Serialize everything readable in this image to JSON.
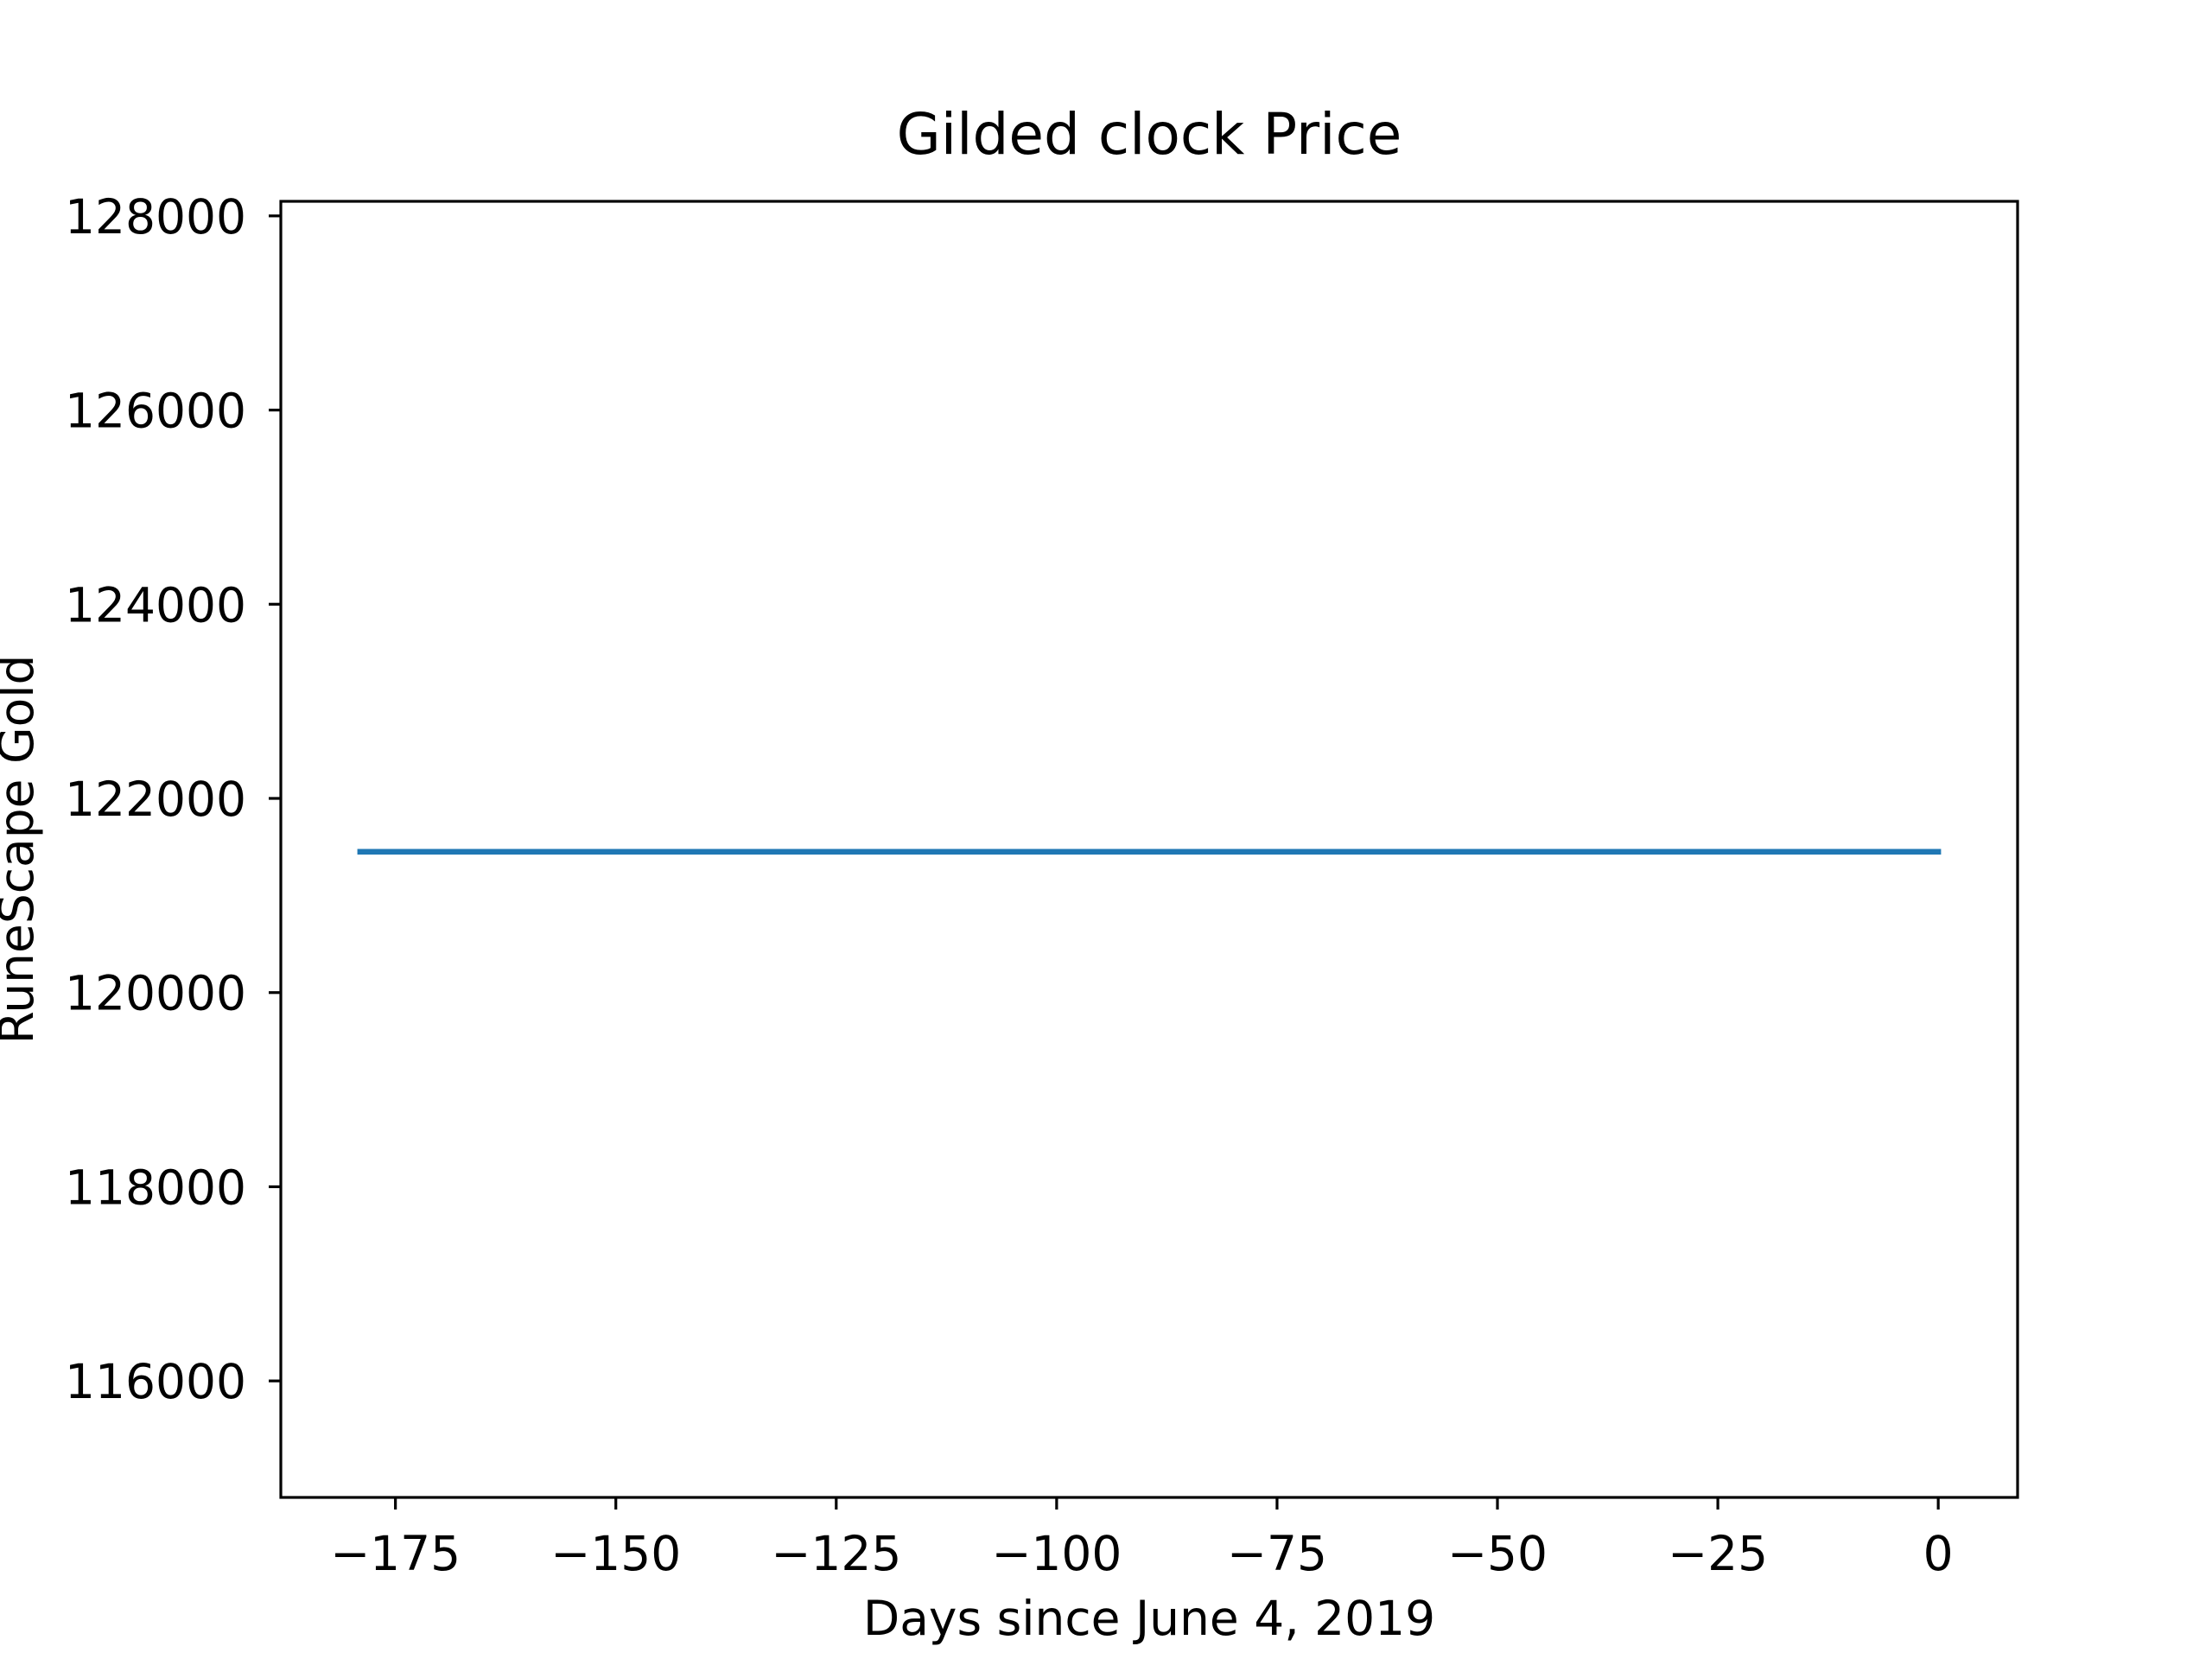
{
  "chart_data": {
    "type": "line",
    "title": "Gilded clock Price",
    "xlabel": "Days since June 4, 2019",
    "ylabel": "RuneScape Gold",
    "xlim": [
      -188,
      9
    ],
    "ylim": [
      114800,
      128150
    ],
    "x_ticks": [
      -175,
      -150,
      -125,
      -100,
      -75,
      -50,
      -25,
      0
    ],
    "x_tick_labels": [
      "−175",
      "−150",
      "−125",
      "−100",
      "−75",
      "−50",
      "−25",
      "0"
    ],
    "y_ticks": [
      116000,
      118000,
      120000,
      122000,
      124000,
      126000,
      128000
    ],
    "y_tick_labels": [
      "116000",
      "118000",
      "120000",
      "122000",
      "124000",
      "126000",
      "128000"
    ],
    "grid": false,
    "series": [
      {
        "color": "#1f77b4",
        "x": [
          -179,
          -150,
          -125,
          -100,
          -75,
          -50,
          -25,
          0
        ],
        "y": [
          121450,
          121450,
          121450,
          121450,
          121450,
          121450,
          121450,
          121450
        ]
      }
    ]
  }
}
